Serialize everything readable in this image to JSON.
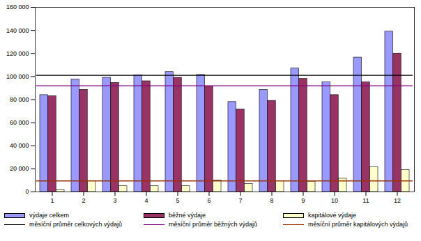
{
  "chart_data": {
    "type": "bar",
    "categories": [
      "1",
      "2",
      "3",
      "4",
      "5",
      "6",
      "7",
      "8",
      "9",
      "10",
      "11",
      "12"
    ],
    "series": [
      {
        "name": "výdaje celkem",
        "type": "bar",
        "color": "#9999ff",
        "values": [
          84000,
          97500,
          99000,
          101000,
          104000,
          101500,
          78000,
          88500,
          107000,
          95000,
          116500,
          139000
        ]
      },
      {
        "name": "běžné výdaje",
        "type": "bar",
        "color": "#993366",
        "values": [
          83000,
          88500,
          94500,
          96000,
          99000,
          91500,
          71500,
          79000,
          98000,
          84000,
          95000,
          120000
        ]
      },
      {
        "name": "kapitálové výdaje",
        "type": "bar",
        "color": "#ffffcc",
        "values": [
          1500,
          9500,
          5000,
          5000,
          5000,
          10000,
          7000,
          9500,
          9000,
          11500,
          21500,
          19000
        ]
      },
      {
        "name": "měsíční průměr celkových výdajů",
        "type": "line",
        "color": "#000000",
        "values": [
          101000,
          101000,
          101000,
          101000,
          101000,
          101000,
          101000,
          101000,
          101000,
          101000,
          101000,
          101000
        ]
      },
      {
        "name": "měsíční průměr běžných výdajů",
        "type": "line",
        "color": "#800080",
        "values": [
          92000,
          92000,
          92000,
          92000,
          92000,
          92000,
          92000,
          92000,
          92000,
          92000,
          92000,
          92000
        ]
      },
      {
        "name": "měsíční průměr kapitálových výdajů",
        "type": "line",
        "color": "#993300",
        "values": [
          9500,
          9500,
          9500,
          9500,
          9500,
          9500,
          9500,
          9500,
          9500,
          9500,
          9500,
          9500
        ]
      }
    ],
    "ylim": [
      0,
      160000
    ],
    "yticks": [
      0,
      {
        "value": 20000,
        "label": "20 000"
      },
      {
        "value": 40000,
        "label": "40 000"
      },
      {
        "value": 60000,
        "label": "60 000"
      },
      {
        "value": 80000,
        "label": "80 000"
      },
      {
        "value": 100000,
        "label": "100 000"
      },
      {
        "value": 120000,
        "label": "120 000"
      },
      {
        "value": 140000,
        "label": "140 000"
      },
      {
        "value": 160000,
        "label": "160 000"
      }
    ],
    "grid": false,
    "legend": "bottom"
  }
}
